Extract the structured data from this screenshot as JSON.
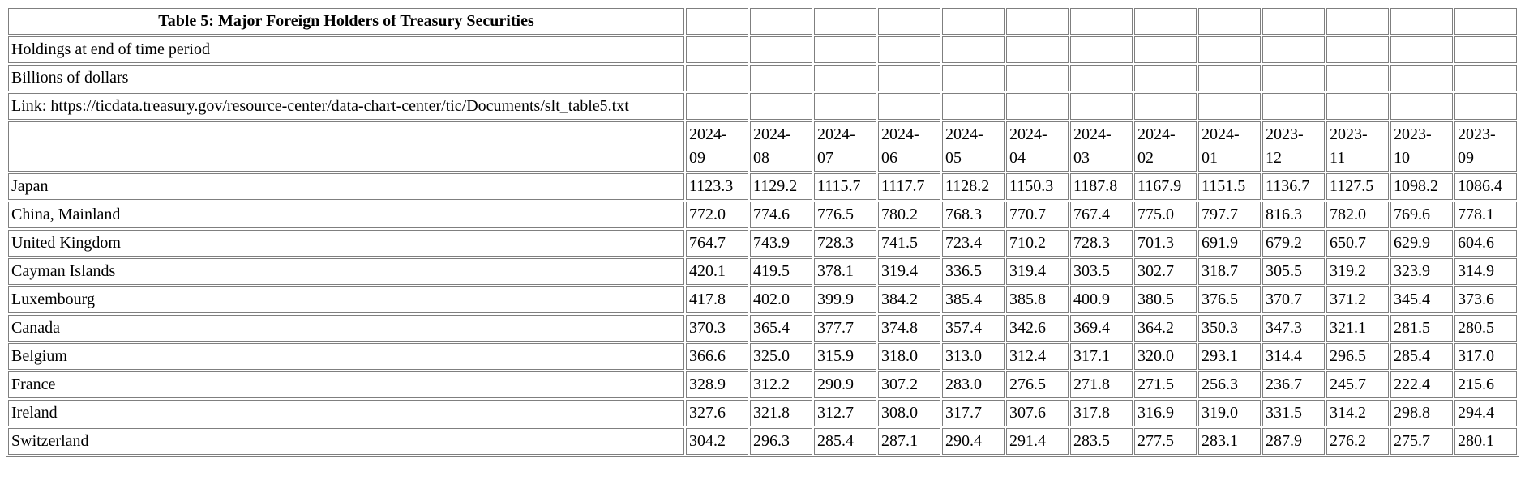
{
  "table": {
    "title": "Table 5: Major Foreign Holders of Treasury Securities",
    "subtitle_holdings": "Holdings at end of time period",
    "subtitle_units": "Billions of dollars",
    "source_link": "Link: https://ticdata.treasury.gov/resource-center/data-chart-center/tic/Documents/slt_table5.txt",
    "columns": [
      "2024-09",
      "2024-08",
      "2024-07",
      "2024-06",
      "2024-05",
      "2024-04",
      "2024-03",
      "2024-02",
      "2024-01",
      "2023-12",
      "2023-11",
      "2023-10",
      "2023-09"
    ],
    "rows": [
      {
        "country": "Japan",
        "values": [
          "1123.3",
          "1129.2",
          "1115.7",
          "1117.7",
          "1128.2",
          "1150.3",
          "1187.8",
          "1167.9",
          "1151.5",
          "1136.7",
          "1127.5",
          "1098.2",
          "1086.4"
        ]
      },
      {
        "country": "China, Mainland",
        "values": [
          "772.0",
          "774.6",
          "776.5",
          "780.2",
          "768.3",
          "770.7",
          "767.4",
          "775.0",
          "797.7",
          "816.3",
          "782.0",
          "769.6",
          "778.1"
        ]
      },
      {
        "country": "United Kingdom",
        "values": [
          "764.7",
          "743.9",
          "728.3",
          "741.5",
          "723.4",
          "710.2",
          "728.3",
          "701.3",
          "691.9",
          "679.2",
          "650.7",
          "629.9",
          "604.6"
        ]
      },
      {
        "country": "Cayman Islands",
        "values": [
          "420.1",
          "419.5",
          "378.1",
          "319.4",
          "336.5",
          "319.4",
          "303.5",
          "302.7",
          "318.7",
          "305.5",
          "319.2",
          "323.9",
          "314.9"
        ]
      },
      {
        "country": "Luxembourg",
        "values": [
          "417.8",
          "402.0",
          "399.9",
          "384.2",
          "385.4",
          "385.8",
          "400.9",
          "380.5",
          "376.5",
          "370.7",
          "371.2",
          "345.4",
          "373.6"
        ]
      },
      {
        "country": "Canada",
        "values": [
          "370.3",
          "365.4",
          "377.7",
          "374.8",
          "357.4",
          "342.6",
          "369.4",
          "364.2",
          "350.3",
          "347.3",
          "321.1",
          "281.5",
          "280.5"
        ]
      },
      {
        "country": "Belgium",
        "values": [
          "366.6",
          "325.0",
          "315.9",
          "318.0",
          "313.0",
          "312.4",
          "317.1",
          "320.0",
          "293.1",
          "314.4",
          "296.5",
          "285.4",
          "317.0"
        ]
      },
      {
        "country": "France",
        "values": [
          "328.9",
          "312.2",
          "290.9",
          "307.2",
          "283.0",
          "276.5",
          "271.8",
          "271.5",
          "256.3",
          "236.7",
          "245.7",
          "222.4",
          "215.6"
        ]
      },
      {
        "country": "Ireland",
        "values": [
          "327.6",
          "321.8",
          "312.7",
          "308.0",
          "317.7",
          "307.6",
          "317.8",
          "316.9",
          "319.0",
          "331.5",
          "314.2",
          "298.8",
          "294.4"
        ]
      },
      {
        "country": "Switzerland",
        "values": [
          "304.2",
          "296.3",
          "285.4",
          "287.1",
          "290.4",
          "291.4",
          "283.5",
          "277.5",
          "283.1",
          "287.9",
          "276.2",
          "275.7",
          "280.1"
        ]
      }
    ]
  },
  "colors": {
    "text": "#000000",
    "border": "#7f7f7f",
    "background": "#ffffff"
  }
}
